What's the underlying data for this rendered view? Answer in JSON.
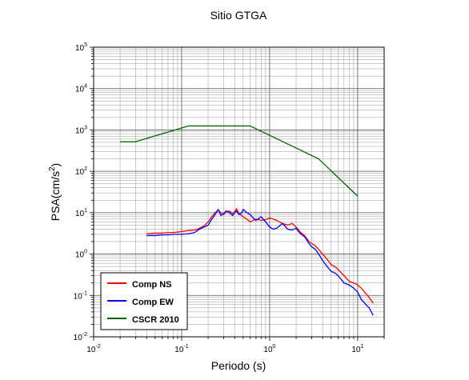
{
  "chart_data": {
    "type": "line",
    "title": "Sitio GTGA",
    "xlabel": "Periodo (s)",
    "ylabel_base": "PSA(cm/s",
    "ylabel_sup": "2",
    "ylabel_close": ")",
    "xscale": "log",
    "yscale": "log",
    "xlim": [
      0.01,
      20
    ],
    "ylim": [
      0.01,
      100000
    ],
    "grid": true,
    "legend_position": "bottom-left",
    "x_ticks": [
      {
        "value": 0.01,
        "base": "10",
        "exp": "-2"
      },
      {
        "value": 0.1,
        "base": "10",
        "exp": "-1"
      },
      {
        "value": 1,
        "base": "10",
        "exp": "0"
      },
      {
        "value": 10,
        "base": "10",
        "exp": "1"
      }
    ],
    "y_ticks": [
      {
        "value": 0.01,
        "base": "10",
        "exp": "-2"
      },
      {
        "value": 0.1,
        "base": "10",
        "exp": "-1"
      },
      {
        "value": 1,
        "base": "10",
        "exp": "0"
      },
      {
        "value": 10,
        "base": "10",
        "exp": "1"
      },
      {
        "value": 100,
        "base": "10",
        "exp": "2"
      },
      {
        "value": 1000,
        "base": "10",
        "exp": "3"
      },
      {
        "value": 10000,
        "base": "10",
        "exp": "4"
      },
      {
        "value": 100000,
        "base": "10",
        "exp": "5"
      }
    ],
    "series": [
      {
        "name": "Comp NS",
        "color": "#ff0000",
        "x": [
          0.04,
          0.05,
          0.06,
          0.07,
          0.08,
          0.1,
          0.12,
          0.14,
          0.16,
          0.18,
          0.2,
          0.22,
          0.24,
          0.26,
          0.28,
          0.3,
          0.32,
          0.35,
          0.38,
          0.4,
          0.42,
          0.45,
          0.48,
          0.5,
          0.55,
          0.6,
          0.65,
          0.7,
          0.8,
          0.9,
          1.0,
          1.1,
          1.2,
          1.4,
          1.6,
          1.8,
          2.0,
          2.2,
          2.5,
          2.8,
          3.0,
          3.3,
          3.6,
          4.0,
          4.5,
          5.0,
          5.5,
          6.0,
          7.0,
          8.0,
          9.0,
          10.0,
          11.0,
          12.0,
          13.5,
          15.0
        ],
        "y": [
          3.1,
          3.2,
          3.2,
          3.3,
          3.3,
          3.5,
          3.7,
          3.8,
          4.2,
          4.8,
          6.0,
          8.0,
          10.0,
          11.5,
          10.0,
          9.0,
          10.5,
          11.0,
          9.5,
          10.5,
          12.5,
          9.5,
          8.5,
          8.0,
          7.0,
          6.0,
          6.5,
          7.0,
          6.5,
          6.8,
          7.5,
          7.0,
          6.5,
          5.5,
          5.0,
          5.5,
          4.5,
          3.5,
          2.8,
          2.0,
          1.8,
          1.6,
          1.3,
          1.0,
          0.75,
          0.55,
          0.5,
          0.42,
          0.3,
          0.22,
          0.2,
          0.18,
          0.15,
          0.12,
          0.09,
          0.065
        ]
      },
      {
        "name": "Comp EW",
        "color": "#0000ff",
        "x": [
          0.04,
          0.05,
          0.06,
          0.07,
          0.08,
          0.1,
          0.12,
          0.14,
          0.16,
          0.18,
          0.2,
          0.22,
          0.24,
          0.26,
          0.28,
          0.3,
          0.32,
          0.35,
          0.38,
          0.4,
          0.42,
          0.45,
          0.48,
          0.5,
          0.55,
          0.6,
          0.65,
          0.7,
          0.8,
          0.9,
          1.0,
          1.1,
          1.2,
          1.4,
          1.6,
          1.8,
          2.0,
          2.2,
          2.5,
          2.8,
          3.0,
          3.3,
          3.6,
          4.0,
          4.5,
          5.0,
          5.5,
          6.0,
          7.0,
          8.0,
          9.0,
          10.0,
          11.0,
          12.0,
          13.5,
          15.0
        ],
        "y": [
          2.8,
          2.8,
          2.9,
          2.9,
          3.0,
          3.0,
          3.1,
          3.3,
          4.0,
          4.5,
          5.0,
          7.0,
          9.0,
          12.0,
          8.5,
          9.5,
          11.0,
          10.0,
          8.5,
          10.0,
          11.0,
          9.0,
          10.0,
          12.0,
          10.0,
          9.0,
          7.5,
          6.5,
          8.0,
          6.0,
          4.5,
          4.0,
          4.2,
          5.5,
          4.0,
          3.8,
          4.2,
          3.2,
          2.6,
          1.8,
          1.5,
          1.3,
          1.0,
          0.7,
          0.5,
          0.38,
          0.35,
          0.3,
          0.2,
          0.18,
          0.15,
          0.12,
          0.08,
          0.065,
          0.05,
          0.033
        ]
      },
      {
        "name": "CSCR 2010",
        "color": "#006400",
        "x": [
          0.02,
          0.03,
          0.12,
          0.6,
          3.6,
          10.0
        ],
        "y": [
          520,
          520,
          1250,
          1250,
          200,
          25
        ]
      }
    ]
  }
}
